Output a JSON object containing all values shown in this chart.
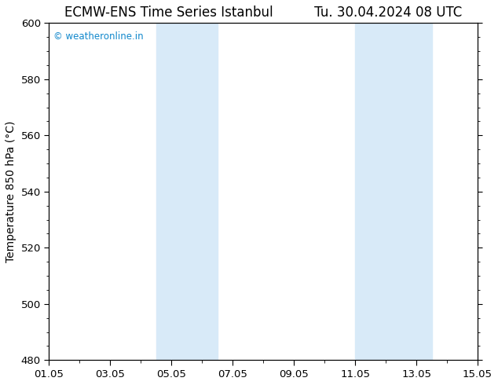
{
  "title_left": "ECMW-ENS Time Series Istanbul",
  "title_right": "Tu. 30.04.2024 08 UTC",
  "ylabel": "Temperature 850 hPa (°C)",
  "ylim": [
    480,
    600
  ],
  "yticks": [
    480,
    500,
    520,
    540,
    560,
    580,
    600
  ],
  "xlim_start": 0,
  "xlim_end": 14,
  "xtick_labels": [
    "01.05",
    "03.05",
    "05.05",
    "07.05",
    "09.05",
    "11.05",
    "13.05",
    "15.05"
  ],
  "xtick_positions": [
    0,
    2,
    4,
    6,
    8,
    10,
    12,
    14
  ],
  "shade_bands": [
    {
      "xmin": 3.5,
      "xmax": 5.5
    },
    {
      "xmin": 10.0,
      "xmax": 12.5
    }
  ],
  "shade_color": "#d8eaf8",
  "background_color": "#ffffff",
  "plot_bg_color": "#ffffff",
  "watermark_text": "© weatheronline.in",
  "watermark_color": "#1188cc",
  "title_fontsize": 12,
  "axis_label_fontsize": 10,
  "tick_fontsize": 9.5
}
